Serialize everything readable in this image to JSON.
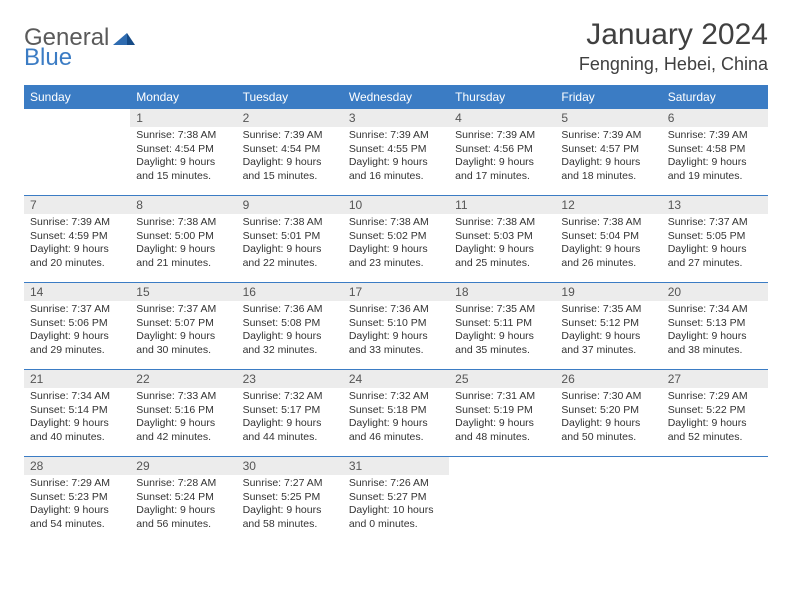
{
  "logo": {
    "part1": "General",
    "part2": "Blue"
  },
  "title": "January 2024",
  "location": "Fengning, Hebei, China",
  "colors": {
    "header_bg": "#3b7cc4",
    "header_text": "#ffffff",
    "daynum_bg": "#ececec",
    "body_text": "#333333",
    "rule": "#3b7cc4"
  },
  "day_names": [
    "Sunday",
    "Monday",
    "Tuesday",
    "Wednesday",
    "Thursday",
    "Friday",
    "Saturday"
  ],
  "weeks": [
    [
      null,
      {
        "n": "1",
        "sr": "Sunrise: 7:38 AM",
        "ss": "Sunset: 4:54 PM",
        "dl": "Daylight: 9 hours and 15 minutes."
      },
      {
        "n": "2",
        "sr": "Sunrise: 7:39 AM",
        "ss": "Sunset: 4:54 PM",
        "dl": "Daylight: 9 hours and 15 minutes."
      },
      {
        "n": "3",
        "sr": "Sunrise: 7:39 AM",
        "ss": "Sunset: 4:55 PM",
        "dl": "Daylight: 9 hours and 16 minutes."
      },
      {
        "n": "4",
        "sr": "Sunrise: 7:39 AM",
        "ss": "Sunset: 4:56 PM",
        "dl": "Daylight: 9 hours and 17 minutes."
      },
      {
        "n": "5",
        "sr": "Sunrise: 7:39 AM",
        "ss": "Sunset: 4:57 PM",
        "dl": "Daylight: 9 hours and 18 minutes."
      },
      {
        "n": "6",
        "sr": "Sunrise: 7:39 AM",
        "ss": "Sunset: 4:58 PM",
        "dl": "Daylight: 9 hours and 19 minutes."
      }
    ],
    [
      {
        "n": "7",
        "sr": "Sunrise: 7:39 AM",
        "ss": "Sunset: 4:59 PM",
        "dl": "Daylight: 9 hours and 20 minutes."
      },
      {
        "n": "8",
        "sr": "Sunrise: 7:38 AM",
        "ss": "Sunset: 5:00 PM",
        "dl": "Daylight: 9 hours and 21 minutes."
      },
      {
        "n": "9",
        "sr": "Sunrise: 7:38 AM",
        "ss": "Sunset: 5:01 PM",
        "dl": "Daylight: 9 hours and 22 minutes."
      },
      {
        "n": "10",
        "sr": "Sunrise: 7:38 AM",
        "ss": "Sunset: 5:02 PM",
        "dl": "Daylight: 9 hours and 23 minutes."
      },
      {
        "n": "11",
        "sr": "Sunrise: 7:38 AM",
        "ss": "Sunset: 5:03 PM",
        "dl": "Daylight: 9 hours and 25 minutes."
      },
      {
        "n": "12",
        "sr": "Sunrise: 7:38 AM",
        "ss": "Sunset: 5:04 PM",
        "dl": "Daylight: 9 hours and 26 minutes."
      },
      {
        "n": "13",
        "sr": "Sunrise: 7:37 AM",
        "ss": "Sunset: 5:05 PM",
        "dl": "Daylight: 9 hours and 27 minutes."
      }
    ],
    [
      {
        "n": "14",
        "sr": "Sunrise: 7:37 AM",
        "ss": "Sunset: 5:06 PM",
        "dl": "Daylight: 9 hours and 29 minutes."
      },
      {
        "n": "15",
        "sr": "Sunrise: 7:37 AM",
        "ss": "Sunset: 5:07 PM",
        "dl": "Daylight: 9 hours and 30 minutes."
      },
      {
        "n": "16",
        "sr": "Sunrise: 7:36 AM",
        "ss": "Sunset: 5:08 PM",
        "dl": "Daylight: 9 hours and 32 minutes."
      },
      {
        "n": "17",
        "sr": "Sunrise: 7:36 AM",
        "ss": "Sunset: 5:10 PM",
        "dl": "Daylight: 9 hours and 33 minutes."
      },
      {
        "n": "18",
        "sr": "Sunrise: 7:35 AM",
        "ss": "Sunset: 5:11 PM",
        "dl": "Daylight: 9 hours and 35 minutes."
      },
      {
        "n": "19",
        "sr": "Sunrise: 7:35 AM",
        "ss": "Sunset: 5:12 PM",
        "dl": "Daylight: 9 hours and 37 minutes."
      },
      {
        "n": "20",
        "sr": "Sunrise: 7:34 AM",
        "ss": "Sunset: 5:13 PM",
        "dl": "Daylight: 9 hours and 38 minutes."
      }
    ],
    [
      {
        "n": "21",
        "sr": "Sunrise: 7:34 AM",
        "ss": "Sunset: 5:14 PM",
        "dl": "Daylight: 9 hours and 40 minutes."
      },
      {
        "n": "22",
        "sr": "Sunrise: 7:33 AM",
        "ss": "Sunset: 5:16 PM",
        "dl": "Daylight: 9 hours and 42 minutes."
      },
      {
        "n": "23",
        "sr": "Sunrise: 7:32 AM",
        "ss": "Sunset: 5:17 PM",
        "dl": "Daylight: 9 hours and 44 minutes."
      },
      {
        "n": "24",
        "sr": "Sunrise: 7:32 AM",
        "ss": "Sunset: 5:18 PM",
        "dl": "Daylight: 9 hours and 46 minutes."
      },
      {
        "n": "25",
        "sr": "Sunrise: 7:31 AM",
        "ss": "Sunset: 5:19 PM",
        "dl": "Daylight: 9 hours and 48 minutes."
      },
      {
        "n": "26",
        "sr": "Sunrise: 7:30 AM",
        "ss": "Sunset: 5:20 PM",
        "dl": "Daylight: 9 hours and 50 minutes."
      },
      {
        "n": "27",
        "sr": "Sunrise: 7:29 AM",
        "ss": "Sunset: 5:22 PM",
        "dl": "Daylight: 9 hours and 52 minutes."
      }
    ],
    [
      {
        "n": "28",
        "sr": "Sunrise: 7:29 AM",
        "ss": "Sunset: 5:23 PM",
        "dl": "Daylight: 9 hours and 54 minutes."
      },
      {
        "n": "29",
        "sr": "Sunrise: 7:28 AM",
        "ss": "Sunset: 5:24 PM",
        "dl": "Daylight: 9 hours and 56 minutes."
      },
      {
        "n": "30",
        "sr": "Sunrise: 7:27 AM",
        "ss": "Sunset: 5:25 PM",
        "dl": "Daylight: 9 hours and 58 minutes."
      },
      {
        "n": "31",
        "sr": "Sunrise: 7:26 AM",
        "ss": "Sunset: 5:27 PM",
        "dl": "Daylight: 10 hours and 0 minutes."
      },
      null,
      null,
      null
    ]
  ]
}
